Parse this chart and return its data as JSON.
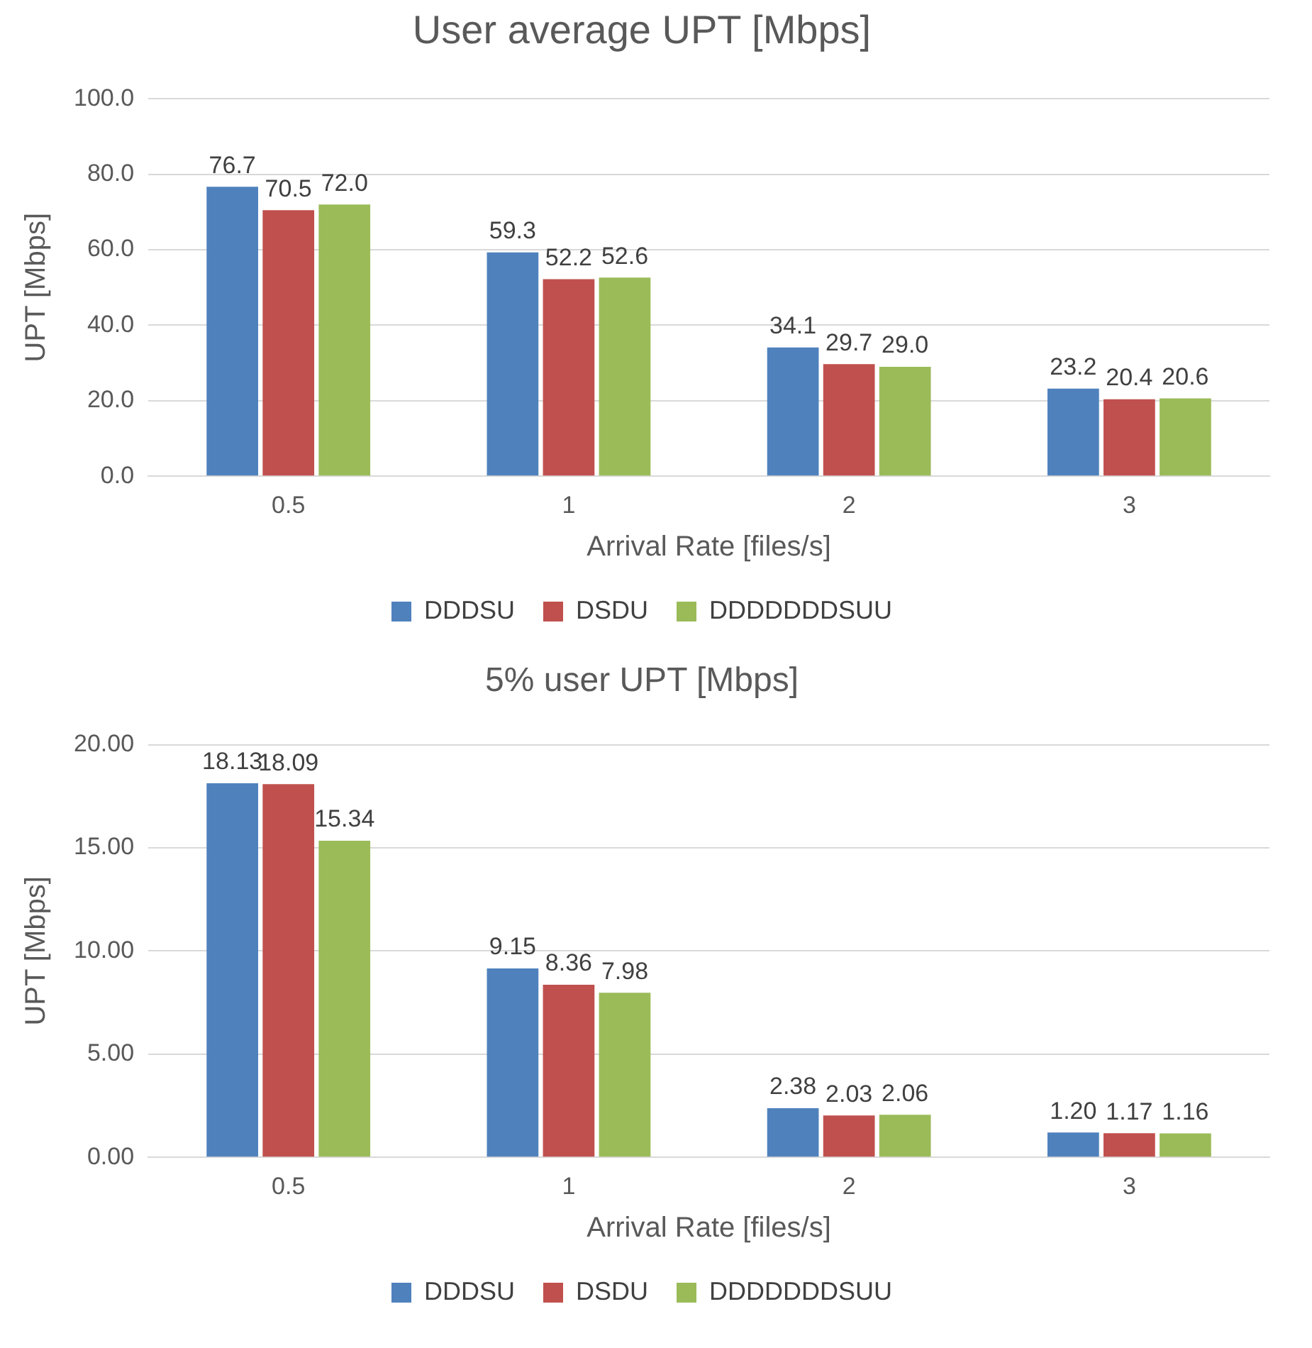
{
  "chart_data": [
    {
      "type": "bar",
      "title": "User average UPT [Mbps]",
      "xlabel": "Arrival Rate [files/s]",
      "ylabel": "UPT [Mbps]",
      "categories": [
        "0.5",
        "1",
        "2",
        "3"
      ],
      "series": [
        {
          "name": "DDDSU",
          "color": "#4f81bd",
          "values": [
            76.7,
            59.3,
            34.1,
            23.2
          ],
          "value_labels": [
            "76.7",
            "59.3",
            "34.1",
            "23.2"
          ]
        },
        {
          "name": "DSDU",
          "color": "#c0504d",
          "values": [
            70.5,
            52.2,
            29.7,
            20.4
          ],
          "value_labels": [
            "70.5",
            "52.2",
            "29.7",
            "20.4"
          ]
        },
        {
          "name": "DDDDDDDSUU",
          "color": "#9bbb59",
          "values": [
            72.0,
            52.6,
            29.0,
            20.6
          ],
          "value_labels": [
            "72.0",
            "52.6",
            "29.0",
            "20.6"
          ]
        }
      ],
      "ylim": [
        0,
        100
      ],
      "yticks": [
        {
          "value": 0,
          "label": "0.0"
        },
        {
          "value": 20,
          "label": "20.0"
        },
        {
          "value": 40,
          "label": "40.0"
        },
        {
          "value": 60,
          "label": "60.0"
        },
        {
          "value": 80,
          "label": "80.0"
        },
        {
          "value": 100,
          "label": "100.0"
        }
      ],
      "grid": "y",
      "legend": "bottom"
    },
    {
      "type": "bar",
      "title": "5% user UPT [Mbps]",
      "xlabel": "Arrival Rate [files/s]",
      "ylabel": "UPT [Mbps]",
      "categories": [
        "0.5",
        "1",
        "2",
        "3"
      ],
      "series": [
        {
          "name": "DDDSU",
          "color": "#4f81bd",
          "values": [
            18.13,
            9.15,
            2.38,
            1.2
          ],
          "value_labels": [
            "18.13",
            "9.15",
            "2.38",
            "1.20"
          ]
        },
        {
          "name": "DSDU",
          "color": "#c0504d",
          "values": [
            18.09,
            8.36,
            2.03,
            1.17
          ],
          "value_labels": [
            "18.09",
            "8.36",
            "2.03",
            "1.17"
          ]
        },
        {
          "name": "DDDDDDDSUU",
          "color": "#9bbb59",
          "values": [
            15.34,
            7.98,
            2.06,
            1.16
          ],
          "value_labels": [
            "15.34",
            "7.98",
            "2.06",
            "1.16"
          ]
        }
      ],
      "ylim": [
        0,
        20
      ],
      "yticks": [
        {
          "value": 0,
          "label": "0.00"
        },
        {
          "value": 5,
          "label": "5.00"
        },
        {
          "value": 10,
          "label": "10.00"
        },
        {
          "value": 15,
          "label": "15.00"
        },
        {
          "value": 20,
          "label": "20.00"
        }
      ],
      "grid": "y",
      "legend": "bottom"
    }
  ]
}
